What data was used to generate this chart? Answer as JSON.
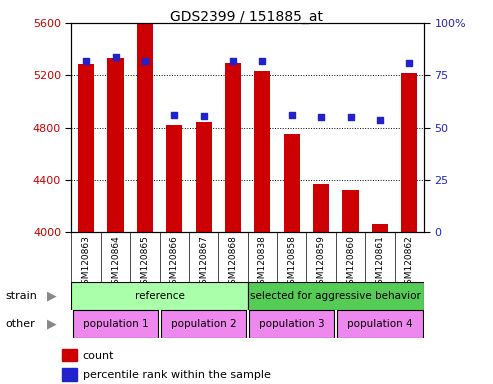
{
  "title": "GDS2399 / 151885_at",
  "samples": [
    "GSM120863",
    "GSM120864",
    "GSM120865",
    "GSM120866",
    "GSM120867",
    "GSM120868",
    "GSM120838",
    "GSM120858",
    "GSM120859",
    "GSM120860",
    "GSM120861",
    "GSM120862"
  ],
  "counts": [
    5290,
    5330,
    5600,
    4820,
    4840,
    5295,
    5230,
    4750,
    4370,
    4320,
    4060,
    5220
  ],
  "percentile_values": [
    5310,
    5340,
    5310,
    4900,
    4890,
    5310,
    5310,
    4900,
    4880,
    4880,
    4860,
    5295
  ],
  "ymin": 4000,
  "ymax": 5600,
  "yticks_left": [
    4000,
    4400,
    4800,
    5200,
    5600
  ],
  "yticks_right": [
    0,
    25,
    50,
    75,
    100
  ],
  "bar_color": "#cc0000",
  "dot_color": "#2222cc",
  "strain_groups": [
    {
      "label": "reference",
      "start": 0,
      "end": 6,
      "color": "#aaffaa"
    },
    {
      "label": "selected for aggressive behavior",
      "start": 6,
      "end": 12,
      "color": "#55cc55"
    }
  ],
  "other_groups": [
    {
      "label": "population 1",
      "start": 0,
      "end": 3,
      "color": "#ee88ee"
    },
    {
      "label": "population 2",
      "start": 3,
      "end": 6,
      "color": "#ee88ee"
    },
    {
      "label": "population 3",
      "start": 6,
      "end": 9,
      "color": "#ee88ee"
    },
    {
      "label": "population 4",
      "start": 9,
      "end": 12,
      "color": "#ee88ee"
    }
  ],
  "strain_label": "strain",
  "other_label": "other",
  "legend_count_label": "count",
  "legend_pct_label": "percentile rank within the sample",
  "background_color": "#ffffff",
  "bar_color_legend": "#cc0000",
  "dot_color_legend": "#2222cc"
}
